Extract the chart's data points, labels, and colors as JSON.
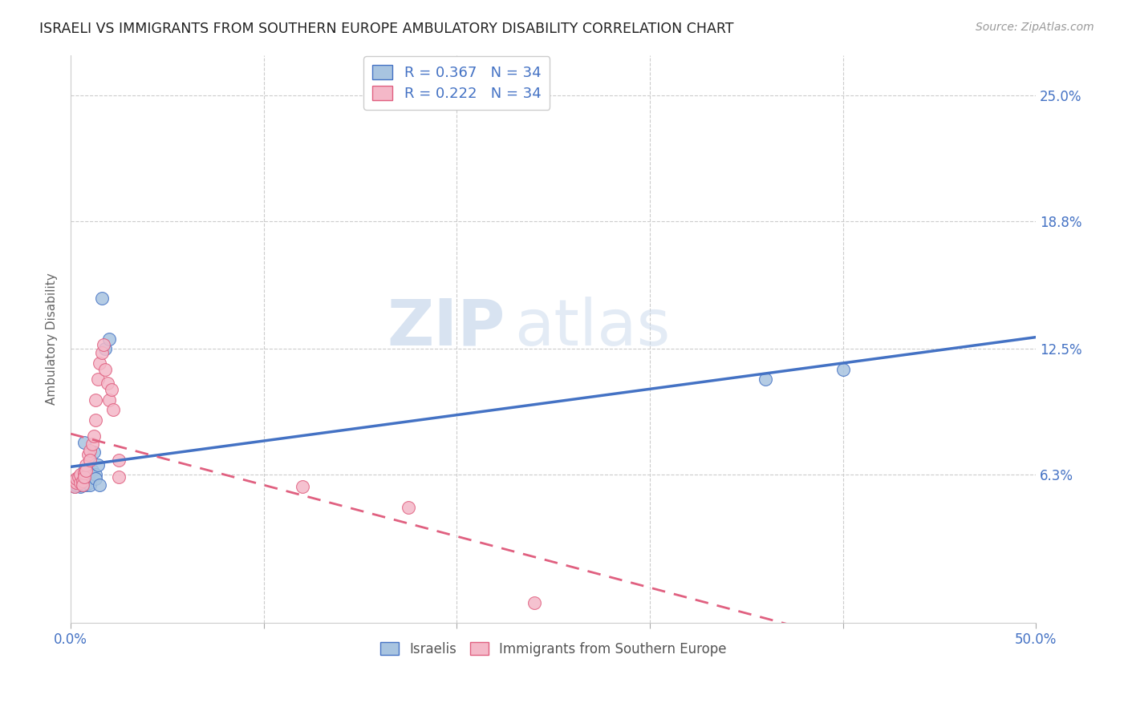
{
  "title": "ISRAELI VS IMMIGRANTS FROM SOUTHERN EUROPE AMBULATORY DISABILITY CORRELATION CHART",
  "source": "Source: ZipAtlas.com",
  "ylabel": "Ambulatory Disability",
  "xlim": [
    0.0,
    0.5
  ],
  "ylim": [
    -0.01,
    0.27
  ],
  "ytick_positions": [
    0.063,
    0.125,
    0.188,
    0.25
  ],
  "ytick_labels": [
    "6.3%",
    "12.5%",
    "18.8%",
    "25.0%"
  ],
  "color_israeli": "#a8c4e0",
  "color_immigrant": "#f4b8c8",
  "color_line_israeli": "#4472c4",
  "color_line_immigrant": "#e06080",
  "color_axis_labels": "#4472c4",
  "watermark_zip": "ZIP",
  "watermark_atlas": "atlas",
  "israeli_x": [
    0.001,
    0.002,
    0.002,
    0.003,
    0.003,
    0.003,
    0.004,
    0.004,
    0.005,
    0.005,
    0.005,
    0.006,
    0.006,
    0.006,
    0.007,
    0.007,
    0.008,
    0.008,
    0.008,
    0.009,
    0.009,
    0.01,
    0.01,
    0.011,
    0.012,
    0.013,
    0.013,
    0.014,
    0.015,
    0.016,
    0.018,
    0.02,
    0.36,
    0.4
  ],
  "israeli_y": [
    0.06,
    0.057,
    0.058,
    0.06,
    0.058,
    0.059,
    0.059,
    0.061,
    0.057,
    0.058,
    0.059,
    0.063,
    0.06,
    0.058,
    0.079,
    0.065,
    0.059,
    0.06,
    0.058,
    0.06,
    0.061,
    0.059,
    0.058,
    0.065,
    0.074,
    0.063,
    0.061,
    0.068,
    0.058,
    0.15,
    0.125,
    0.13,
    0.11,
    0.115
  ],
  "immigrant_x": [
    0.001,
    0.002,
    0.003,
    0.003,
    0.004,
    0.005,
    0.005,
    0.006,
    0.006,
    0.007,
    0.007,
    0.008,
    0.008,
    0.009,
    0.01,
    0.01,
    0.011,
    0.012,
    0.013,
    0.013,
    0.014,
    0.015,
    0.016,
    0.017,
    0.018,
    0.019,
    0.02,
    0.021,
    0.022,
    0.025,
    0.025,
    0.12,
    0.175,
    0.24
  ],
  "immigrant_y": [
    0.06,
    0.057,
    0.059,
    0.061,
    0.062,
    0.059,
    0.063,
    0.06,
    0.058,
    0.064,
    0.062,
    0.068,
    0.065,
    0.073,
    0.075,
    0.07,
    0.078,
    0.082,
    0.09,
    0.1,
    0.11,
    0.118,
    0.123,
    0.127,
    0.115,
    0.108,
    0.1,
    0.105,
    0.095,
    0.062,
    0.07,
    0.057,
    0.047,
    0.0
  ]
}
